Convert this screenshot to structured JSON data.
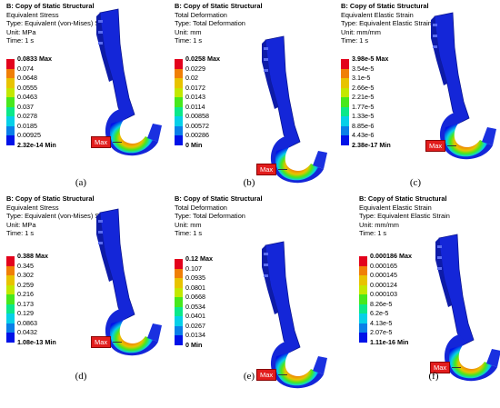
{
  "legend_colors": [
    "#e3021c",
    "#f07f06",
    "#e8c300",
    "#c3e800",
    "#47e81d",
    "#0be88a",
    "#06d0e8",
    "#0a7fe8",
    "#0012e8"
  ],
  "panels": [
    {
      "caption": "(a)",
      "header": [
        "B: Copy of Static Structural",
        "Equivalent Stress",
        "Type: Equivalent (von-Mises) Stress",
        "Unit: MPa",
        "Time: 1 s"
      ],
      "labels": [
        "0.0833 Max",
        "0.074",
        "0.0648",
        "0.0555",
        "0.0463",
        "0.037",
        "0.0278",
        "0.0185",
        "0.00925",
        "2.32e-14 Min"
      ],
      "tag": "Max"
    },
    {
      "caption": "(b)",
      "header": [
        "B: Copy of Static Structural",
        "Total Deformation",
        "Type: Total Deformation",
        "Unit: mm",
        "Time: 1 s"
      ],
      "labels": [
        "0.0258 Max",
        "0.0229",
        "0.02",
        "0.0172",
        "0.0143",
        "0.0114",
        "0.00858",
        "0.00572",
        "0.00286",
        "0 Min"
      ],
      "tag": "Max"
    },
    {
      "caption": "(c)",
      "header": [
        "B: Copy of Static Structural",
        "Equivalent Elastic Strain",
        "Type: Equivalent Elastic Strain",
        "Unit: mm/mm",
        "Time: 1 s"
      ],
      "labels": [
        "3.98e-5 Max",
        "3.54e-5",
        "3.1e-5",
        "2.66e-5",
        "2.21e-5",
        "1.77e-5",
        "1.33e-5",
        "8.85e-6",
        "4.43e-6",
        "2.38e-17 Min"
      ],
      "tag": "Max"
    },
    {
      "caption": "(d)",
      "header": [
        "B: Copy of Static Structural",
        "Equivalent Stress",
        "Type: Equivalent (von-Mises) Stress",
        "Unit: MPa",
        "Time: 1 s"
      ],
      "labels": [
        "0.388 Max",
        "0.345",
        "0.302",
        "0.259",
        "0.216",
        "0.173",
        "0.129",
        "0.0863",
        "0.0432",
        "1.08e-13 Min"
      ],
      "tag": "Max"
    },
    {
      "caption": "(e)",
      "header": [
        "B: Copy of Static Structural",
        "Total Deformation",
        "Type: Total Deformation",
        "Unit: mm",
        "Time: 1 s"
      ],
      "labels": [
        "0.12 Max",
        "0.107",
        "0.0935",
        "0.0801",
        "0.0668",
        "0.0534",
        "0.0401",
        "0.0267",
        "0.0134",
        "0 Min"
      ],
      "tag": "Max"
    },
    {
      "caption": "(f)",
      "header": [
        "B: Copy of Static Structural",
        "Equivalent Elastic Strain",
        "Type: Equivalent Elastic Strain",
        "Unit: mm/mm",
        "Time: 1 s"
      ],
      "labels": [
        "0.000186 Max",
        "0.000165",
        "0.000145",
        "0.000124",
        "0.000103",
        "8.26e-5",
        "6.2e-5",
        "4.13e-5",
        "2.07e-5",
        "1.11e-16 Min"
      ],
      "tag": "Max"
    }
  ]
}
